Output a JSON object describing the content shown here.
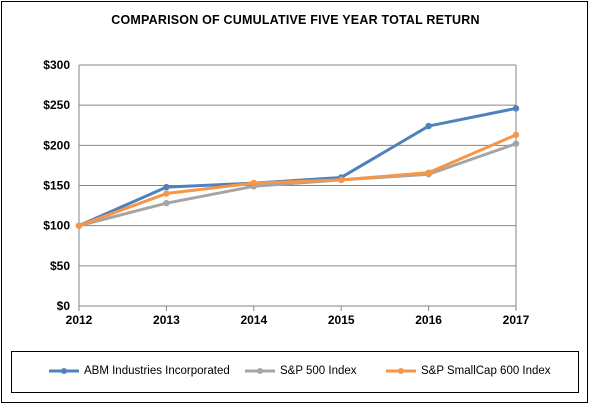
{
  "chart_data": {
    "type": "line",
    "title": "COMPARISON OF CUMULATIVE FIVE YEAR TOTAL RETURN",
    "xlabel": "",
    "ylabel": "",
    "categories": [
      "2012",
      "2013",
      "2014",
      "2015",
      "2016",
      "2017"
    ],
    "ylim": [
      0,
      300
    ],
    "yticks": [
      "$0",
      "$50",
      "$100",
      "$150",
      "$200",
      "$250",
      "$300"
    ],
    "grid": true,
    "legend_position": "bottom",
    "series": [
      {
        "name": "ABM Industries Incorporated",
        "color": "#4F81BD",
        "values": [
          100,
          148,
          153,
          160,
          224,
          246
        ]
      },
      {
        "name": "S&P 500 Index",
        "color": "#A5A5A5",
        "values": [
          100,
          128,
          149,
          157,
          164,
          202
        ]
      },
      {
        "name": "S&P SmallCap 600 Index",
        "color": "#F79646",
        "values": [
          100,
          140,
          153,
          157,
          166,
          213
        ]
      }
    ]
  }
}
